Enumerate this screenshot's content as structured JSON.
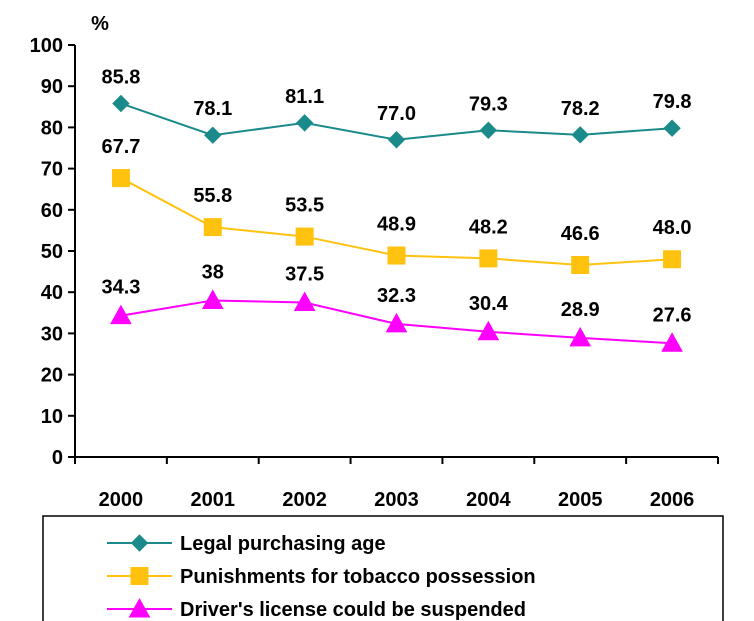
{
  "chart_data": {
    "type": "line",
    "title": "",
    "xlabel": "",
    "ylabel": "%",
    "ylim": [
      0,
      100
    ],
    "yticks": [
      0,
      10,
      20,
      30,
      40,
      50,
      60,
      70,
      80,
      90,
      100
    ],
    "categories": [
      "2000",
      "2001",
      "2002",
      "2003",
      "2004",
      "2005",
      "2006"
    ],
    "grid": false,
    "legend_position": "bottom",
    "series": [
      {
        "name": "Legal purchasing age",
        "values": [
          85.8,
          78.1,
          81.1,
          77.0,
          79.3,
          78.2,
          79.8
        ],
        "labels": [
          "85.8",
          "78.1",
          "81.1",
          "77.0",
          "79.3",
          "78.2",
          "79.8"
        ],
        "color": "#1B8A8A",
        "marker": "diamond"
      },
      {
        "name": "Punishments for tobacco possession",
        "values": [
          67.7,
          55.8,
          53.5,
          48.9,
          48.2,
          46.6,
          48.0
        ],
        "labels": [
          "67.7",
          "55.8",
          "53.5",
          "48.9",
          "48.2",
          "46.6",
          "48.0"
        ],
        "color": "#FFC20E",
        "marker": "square"
      },
      {
        "name": "Driver's license could be suspended",
        "values": [
          34.3,
          38,
          37.5,
          32.3,
          30.4,
          28.9,
          27.6
        ],
        "labels": [
          "34.3",
          "38",
          "37.5",
          "32.3",
          "30.4",
          "28.9",
          "27.6"
        ],
        "color": "#FF00FF",
        "marker": "triangle"
      }
    ]
  }
}
